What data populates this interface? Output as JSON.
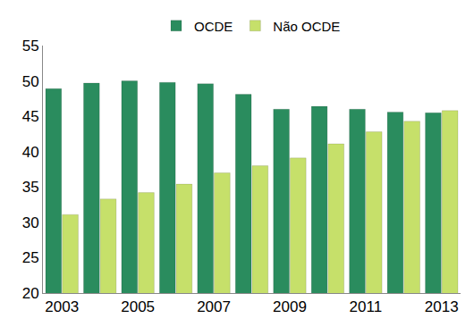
{
  "chart_data": {
    "type": "bar",
    "categories": [
      "2003",
      null,
      "2005",
      null,
      "2007",
      null,
      "2009",
      null,
      "2011",
      null,
      "2013"
    ],
    "series": [
      {
        "name": "OCDE",
        "color": "#2a8c5e",
        "values": [
          48.9,
          49.7,
          50.0,
          49.8,
          49.6,
          48.1,
          46.0,
          46.4,
          46.0,
          45.6,
          45.5
        ]
      },
      {
        "name": "Não OCDE",
        "color": "#c6e06a",
        "values": [
          31.1,
          33.3,
          34.2,
          35.4,
          37.0,
          38.0,
          39.1,
          41.1,
          42.8,
          44.3,
          45.8
        ]
      }
    ],
    "ylim": [
      20,
      55
    ],
    "yticks": [
      20,
      25,
      30,
      35,
      40,
      45,
      50,
      55
    ],
    "grid": false,
    "legend": "top"
  }
}
